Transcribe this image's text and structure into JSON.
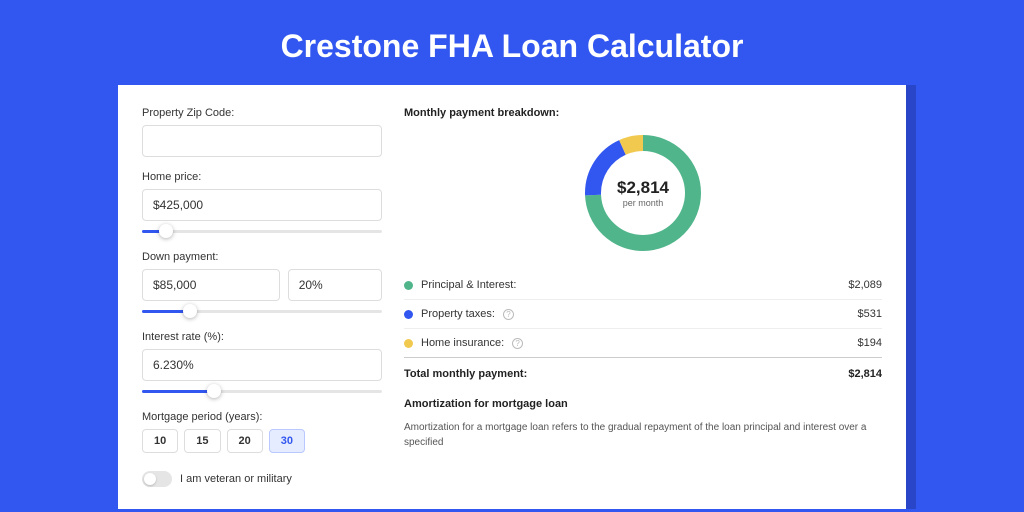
{
  "page": {
    "title": "Crestone FHA Loan Calculator",
    "bg_color": "#3257f0"
  },
  "form": {
    "zip": {
      "label": "Property Zip Code:",
      "value": ""
    },
    "home_price": {
      "label": "Home price:",
      "value": "$425,000",
      "slider_pct": 10
    },
    "down_payment": {
      "label": "Down payment:",
      "value": "$85,000",
      "pct_value": "20%",
      "slider_pct": 20
    },
    "interest": {
      "label": "Interest rate (%):",
      "value": "6.230%",
      "slider_pct": 30
    },
    "mortgage_period": {
      "label": "Mortgage period (years):",
      "options": [
        "10",
        "15",
        "20",
        "30"
      ],
      "selected": "30"
    },
    "veteran": {
      "label": "I am veteran or military",
      "on": false
    }
  },
  "breakdown": {
    "heading": "Monthly payment breakdown:",
    "donut": {
      "amount": "$2,814",
      "sub": "per month",
      "segments": [
        {
          "color": "#51b58b",
          "pct": 74.2
        },
        {
          "color": "#3257f0",
          "pct": 18.9
        },
        {
          "color": "#f1c94f",
          "pct": 6.9
        }
      ],
      "stroke_width": 16
    },
    "rows": [
      {
        "label": "Principal & Interest:",
        "value": "$2,089",
        "color": "#51b58b",
        "info": false
      },
      {
        "label": "Property taxes:",
        "value": "$531",
        "color": "#3257f0",
        "info": true
      },
      {
        "label": "Home insurance:",
        "value": "$194",
        "color": "#f1c94f",
        "info": true
      }
    ],
    "total": {
      "label": "Total monthly payment:",
      "value": "$2,814"
    }
  },
  "amortization": {
    "heading": "Amortization for mortgage loan",
    "text": "Amortization for a mortgage loan refers to the gradual repayment of the loan principal and interest over a specified"
  }
}
